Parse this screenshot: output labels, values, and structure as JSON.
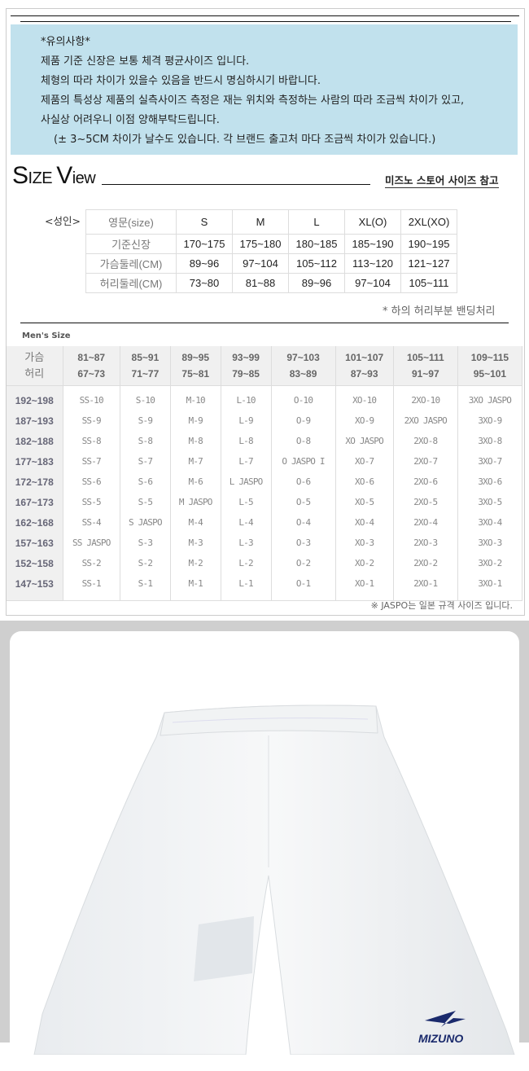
{
  "notice": {
    "title": "*유의사항*",
    "lines": [
      "제품 기준 신장은 보통 체격 평균사이즈 입니다.",
      "체형의 따라 차이가 있을수 있음을 반드시 명심하시기 바랍니다.",
      "제품의  특성상 제품의 실측사이즈 측정은 재는 위치와 측정하는 사람의 따라 조금씩 차이가 있고,",
      "사실상 어려우니 이점 양해부탁드립니다."
    ],
    "extra": "(± 3~5CM 차이가 날수도 있습니다. 각 브랜드 출고처 마다 조금씩 차이가 있습니다.)"
  },
  "size_view": {
    "s": "S",
    "ize": "IZE ",
    "v": "V",
    "iew": "iew",
    "reference_link": "미즈노 스토어 사이즈 참고"
  },
  "adult": {
    "label": "<성인>",
    "rows": [
      [
        "영문(size)",
        "S",
        "M",
        "L",
        "XL(O)",
        "2XL(XO)"
      ],
      [
        "기준신장",
        "170~175",
        "175~180",
        "180~185",
        "185~190",
        "190~195"
      ],
      [
        "가슴둘레(CM)",
        "89~96",
        "97~104",
        "105~112",
        "113~120",
        "121~127"
      ],
      [
        "허리둘레(CM)",
        "73~80",
        "81~88",
        "89~96",
        "97~104",
        "105~111"
      ]
    ],
    "note": "* 하의 허리부분 밴딩처리"
  },
  "mens": {
    "label": "Men's Size",
    "header_row_label": "가슴",
    "header_row_label2": "허리",
    "chest": [
      "81~87",
      "85~91",
      "89~95",
      "93~99",
      "97~103",
      "101~107",
      "105~111",
      "109~115"
    ],
    "waist": [
      "67~73",
      "71~77",
      "75~81",
      "79~85",
      "83~89",
      "87~93",
      "91~97",
      "95~101"
    ],
    "rows": [
      {
        "h": "192~198",
        "c": [
          "SS-10",
          "S-10",
          "M-10",
          "L-10",
          "O-10",
          "XO-10",
          "2XO-10",
          "3XO JASPO"
        ]
      },
      {
        "h": "187~193",
        "c": [
          "SS-9",
          "S-9",
          "M-9",
          "L-9",
          "O-9",
          "XO-9",
          "2XO JASPO",
          "3XO-9"
        ]
      },
      {
        "h": "182~188",
        "c": [
          "SS-8",
          "S-8",
          "M-8",
          "L-8",
          "O-8",
          "XO JASPO",
          "2XO-8",
          "3XO-8"
        ]
      },
      {
        "h": "177~183",
        "c": [
          "SS-7",
          "S-7",
          "M-7",
          "L-7",
          "O JASPO I",
          "XO-7",
          "2XO-7",
          "3XO-7"
        ]
      },
      {
        "h": "172~178",
        "c": [
          "SS-6",
          "S-6",
          "M-6",
          "L JASPO",
          "O-6",
          "XO-6",
          "2XO-6",
          "3XO-6"
        ]
      },
      {
        "h": "167~173",
        "c": [
          "SS-5",
          "S-5",
          "M JASPO",
          "L-5",
          "O-5",
          "XO-5",
          "2XO-5",
          "3XO-5"
        ]
      },
      {
        "h": "162~168",
        "c": [
          "SS-4",
          "S JASPO",
          "M-4",
          "L-4",
          "O-4",
          "XO-4",
          "2XO-4",
          "3XO-4"
        ]
      },
      {
        "h": "157~163",
        "c": [
          "SS JASPO",
          "S-3",
          "M-3",
          "L-3",
          "O-3",
          "XO-3",
          "2XO-3",
          "3XO-3"
        ]
      },
      {
        "h": "152~158",
        "c": [
          "SS-2",
          "S-2",
          "M-2",
          "L-2",
          "O-2",
          "XO-2",
          "2XO-2",
          "3XO-2"
        ]
      },
      {
        "h": "147~153",
        "c": [
          "SS-1",
          "S-1",
          "M-1",
          "L-1",
          "O-1",
          "XO-1",
          "2XO-1",
          "3XO-1"
        ]
      }
    ],
    "note": "※ JASPO는 일본 규격 사이즈 입니다."
  },
  "product": {
    "logo": "MIZUNO",
    "colors": {
      "notice_bg": "#c1e1ed",
      "logo": "#1a2a6c"
    }
  }
}
